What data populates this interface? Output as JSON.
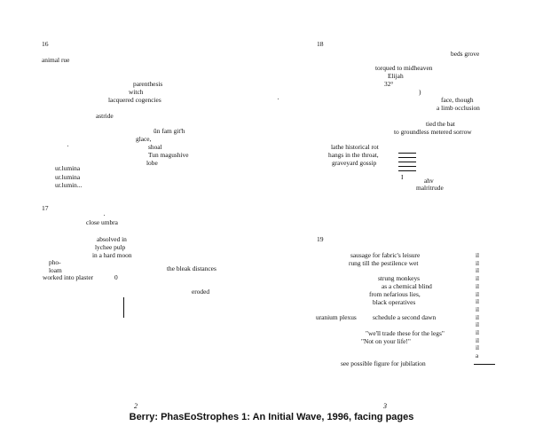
{
  "page_left": {
    "sec16": {
      "number": "16",
      "l1": "animal rue",
      "l2": "parenthesis",
      "l3": "witch",
      "l4": "lacquered cogencies",
      "l5": "astride",
      "l6": "ūn fam git'h",
      "l7": "glace,",
      "l8": "shoal",
      "l9": "Tun magushive",
      "l10": "lobe",
      "l11": "ur.lumina",
      "l12": "ur.lumina",
      "l13": "ur.lumin..."
    },
    "sec17": {
      "number": "17",
      "l1": "close umbra",
      "l2": "absolved in",
      "l3": "lychee pulp",
      "l4": "in a hard moon",
      "l5": "pho-",
      "l6": "loam",
      "l7": "worked into plaster",
      "l8": "0",
      "l9": "the bleak distances",
      "l10": "eroded"
    },
    "page_number": "2"
  },
  "page_right": {
    "sec18": {
      "number": "18",
      "l1": "beds grove",
      "l2": "torqued to midheaven",
      "l3": "Elijah",
      "l4": "32°",
      "l5": ")",
      "l6": "face, though",
      "l7": "a limb occlusion",
      "l8": "tied the bat",
      "l9": "to groundless metered sorrow",
      "l10": "lathe historical rot",
      "l11": "hangs in the throat,",
      "l12": "graveyard gossip",
      "l13": "I",
      "l14": "ahv",
      "l15": "malritrude"
    },
    "sec19": {
      "number": "19",
      "l1": "sausage for fabric's leisure",
      "l2": "rung till the pestilence wet",
      "l3": "strung monkeys",
      "l4": "as a chemical blind",
      "l5": "from nefarious lies,",
      "l6": "black operatives",
      "l7": "uranium plexus",
      "l8": "schedule a second dawn",
      "l9": "\"we'll trade these for the legs\"",
      "l10": "\"Not on your life!\"",
      "l11": "see possible figure for jubilation",
      "il_column": [
        "il",
        "il",
        "il",
        "il",
        "il",
        "il",
        "il",
        "il",
        "il",
        "il",
        "il",
        "il",
        "il",
        "a"
      ]
    },
    "page_number": "3"
  },
  "caption": "Berry: PhasEoStrophes 1: An Initial Wave, 1996, facing pages"
}
